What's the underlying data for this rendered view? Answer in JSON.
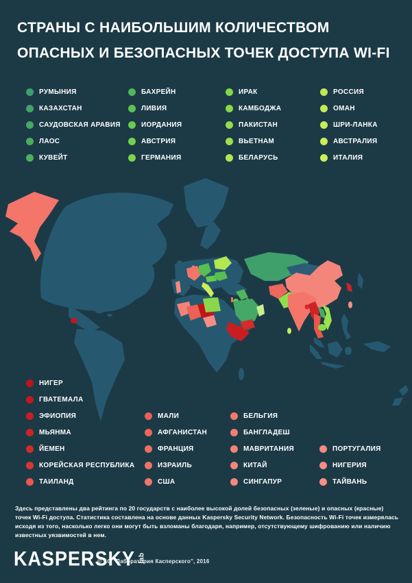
{
  "page": {
    "background": "#1C3A46",
    "title_line1": "СТРАНЫ С НАИБОЛЬШИМ КОЛИЧЕСТВОМ",
    "title_line2": "ОПАСНЫХ И БЕЗОПАСНЫХ ТОЧЕК ДОСТУПА WI-FI"
  },
  "safe_ranking": {
    "columns": [
      [
        {
          "label": "РУМЫНИЯ",
          "color": "#3FA06C"
        },
        {
          "label": "КАЗАХСТАН",
          "color": "#42A469"
        },
        {
          "label": "САУДОВСКАЯ АРАВИЯ",
          "color": "#45A866"
        },
        {
          "label": "ЛАОС",
          "color": "#48AC63"
        },
        {
          "label": "КУВЕЙТ",
          "color": "#4BB05F"
        }
      ],
      [
        {
          "label": "БАХРЕЙН",
          "color": "#50B55B"
        },
        {
          "label": "ЛИВИЯ",
          "color": "#5DC254"
        },
        {
          "label": "ИОРДАНИЯ",
          "color": "#68CA50"
        },
        {
          "label": "АВСТРИЯ",
          "color": "#71D04D"
        },
        {
          "label": "ГЕРМАНИЯ",
          "color": "#7AD34B"
        }
      ],
      [
        {
          "label": "ИРАК",
          "color": "#82D64A"
        },
        {
          "label": "КАМБОДЖА",
          "color": "#8AD94B"
        },
        {
          "label": "ПАКИСТАН",
          "color": "#93DC4C"
        },
        {
          "label": "ВЬЕТНАМ",
          "color": "#9DE04E"
        },
        {
          "label": "БЕЛАРУСЬ",
          "color": "#B2E752"
        }
      ],
      [
        {
          "label": "РОССИЯ",
          "color": "#BFEA55"
        },
        {
          "label": "ОМАН",
          "color": "#C4EB56"
        },
        {
          "label": "ШРИ-ЛАНКА",
          "color": "#C8EC58"
        },
        {
          "label": "АВСТРАЛИЯ",
          "color": "#CBED59"
        },
        {
          "label": "ИТАЛИЯ",
          "color": "#CEEE5A"
        }
      ]
    ]
  },
  "unsafe_ranking": {
    "columns": [
      [
        {
          "label": "НИГЕР",
          "color": "#BF141B"
        },
        {
          "label": "ГВАТЕМАЛА",
          "color": "#C4181E"
        },
        {
          "label": "ЭФИОПИЯ",
          "color": "#C91D22"
        },
        {
          "label": "МЬЯНМА",
          "color": "#CE2426"
        },
        {
          "label": "ЙЕМЕН",
          "color": "#D32C2B"
        },
        {
          "label": "КОРЕЙСКАЯ РЕСПУБЛИКА",
          "color": "#D93632"
        },
        {
          "label": "ТАИЛАНД",
          "color": "#E9574C"
        }
      ],
      [
        {
          "label": "МАЛИ",
          "color": "#EB6055"
        },
        {
          "label": "АФГАНИСТАН",
          "color": "#ED675C"
        },
        {
          "label": "ФРАНЦИЯ",
          "color": "#EF6D62"
        },
        {
          "label": "ИЗРАИЛЬ",
          "color": "#F07267"
        },
        {
          "label": "США",
          "color": "#F1766B"
        }
      ],
      [
        {
          "label": "БЕЛЬГИЯ",
          "color": "#F27A6F"
        },
        {
          "label": "БАНГЛАДЕШ",
          "color": "#F37E73"
        },
        {
          "label": "МАВРИТАНИЯ",
          "color": "#F38277"
        },
        {
          "label": "КИТАЙ",
          "color": "#F4857A"
        },
        {
          "label": "СИНГАПУР",
          "color": "#F5887D"
        }
      ],
      [
        {
          "label": "ПОРТУГАЛИЯ",
          "color": "#F58B80"
        },
        {
          "label": "НИГЕРИЯ",
          "color": "#F68D82"
        },
        {
          "label": "ТАЙВАНЬ",
          "color": "#F69084"
        }
      ]
    ]
  },
  "map": {
    "ocean": "#1C3A46",
    "fills": {
      "land": "#265970",
      "mongolia": "#2C5C78",
      "alaska_usa": "#F4756A",
      "guatemala": "#C01820",
      "france": "#F0756A",
      "belgium": "#F27A6F",
      "portugal": "#F58B80",
      "germany": "#56C052",
      "austria": "#66C950",
      "romania": "#56C052",
      "italy": "#CEEE5A",
      "belarus": "#B2E752",
      "mauritania": "#F38277",
      "mali": "#EB6055",
      "niger": "#BF141B",
      "nigeria": "#F68D82",
      "libya": "#8BD64C",
      "ethiopia": "#C91D22",
      "iraq": "#50B55B",
      "jordan": "#68CA50",
      "israel": "#F07267",
      "kuwait": "#4BB05F",
      "bahrain": "#50B55B",
      "saudi_arabia": "#45A866",
      "yemen": "#D32C2B",
      "oman": "#CBEC8F",
      "kazakhstan": "#3FA06C",
      "china": "#F4857A",
      "korea": "#CE2426",
      "taiwan": "#F69084",
      "afghanistan": "#ED675C",
      "pakistan": "#93DC4C",
      "india": "#F4756A",
      "bangladesh": "#D32C2B",
      "myanmar": "#CE2426",
      "thailand": "#E9574C",
      "laos": "#48AC63",
      "vietnam": "#9DE04E",
      "cambodia": "#8AD94B",
      "sri_lanka": "#C8EC58"
    }
  },
  "footer": {
    "description": "Здесь представлены два рейтинга по 20 государств с наиболее высокой долей безопасных (зеленые) и опасных (красные) точек Wi-Fi доступа. Статистика составлена на основе данных Kaspersky Security Network. Безопасность Wi-Fi точек измерялась исходя из того, насколько легко они могут быть взломаны благодаря, например, отсутствующему шифрованию или наличию известных уязвимостей в нем.",
    "logo_text": "KASPERSKY",
    "logo_lab": "lab",
    "copyright": "© АО \"Лаборатория Касперского\", 2016"
  }
}
